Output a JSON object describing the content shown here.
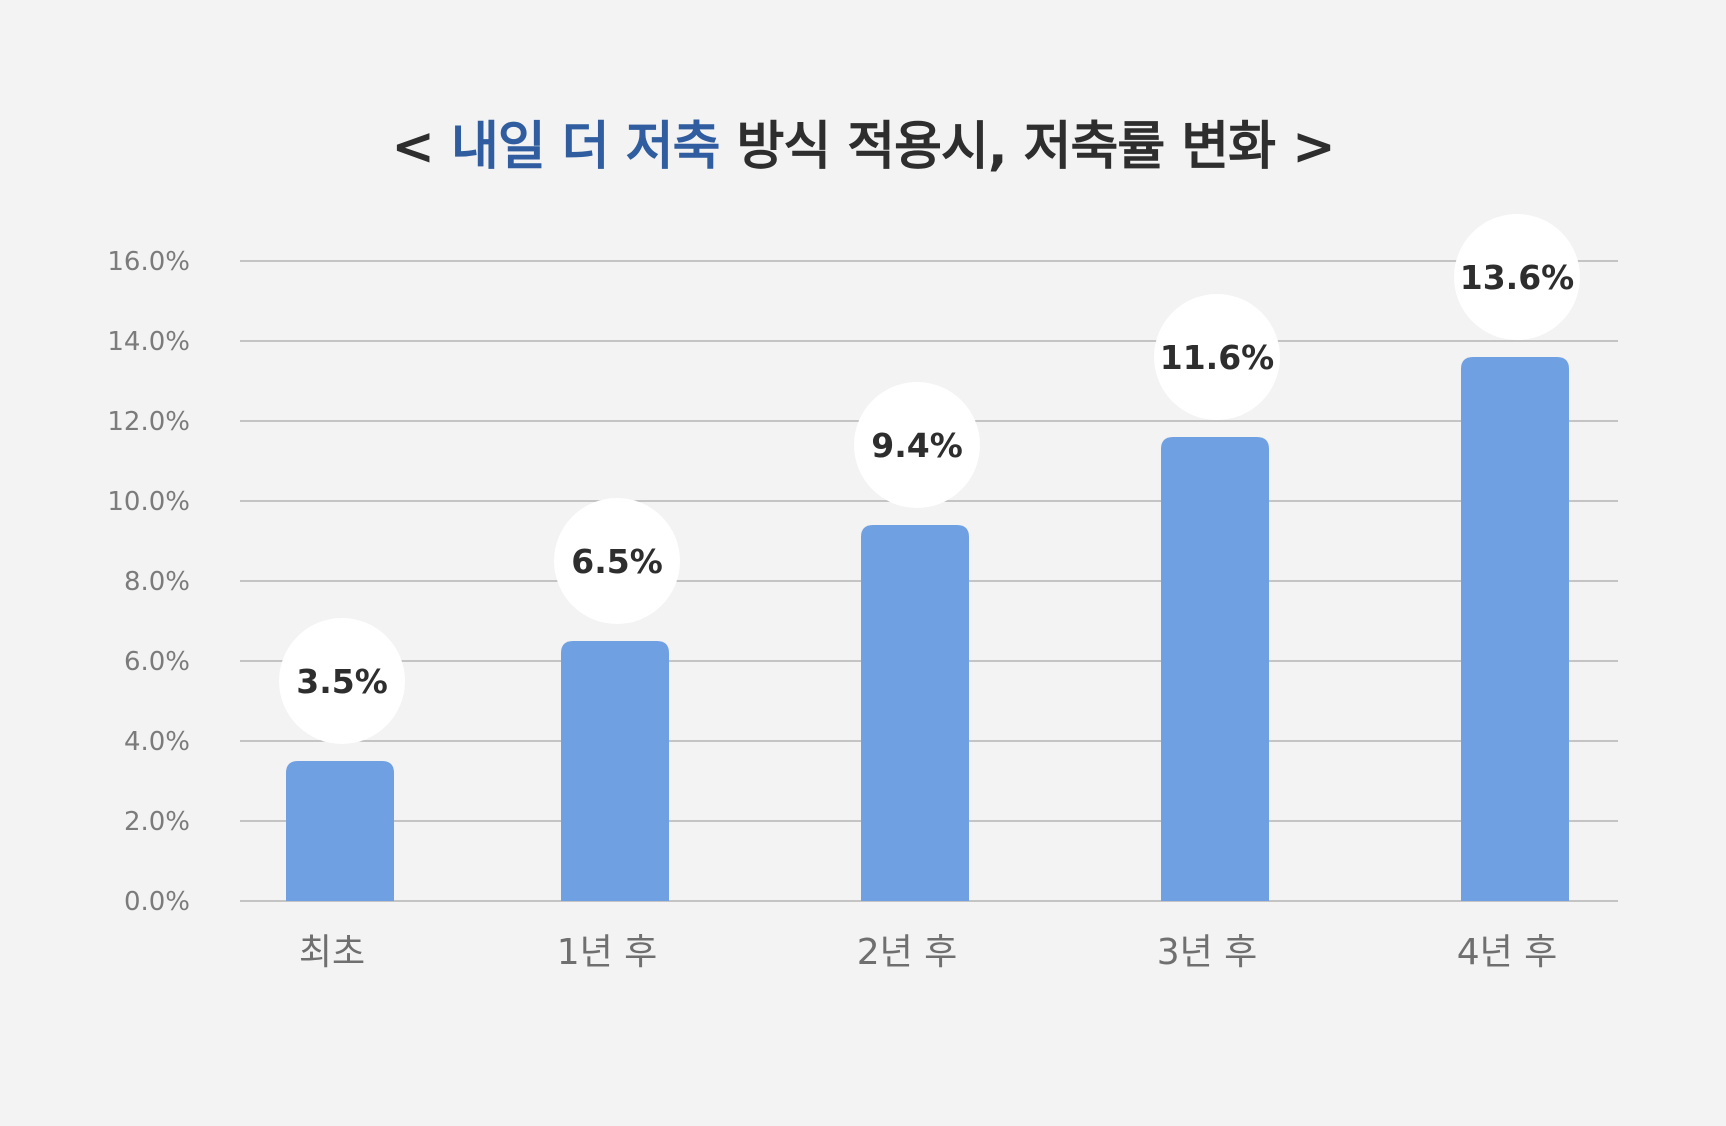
{
  "chart_data": {
    "type": "bar",
    "title_prefix": "< ",
    "title_highlight": "내일 더 저축",
    "title_rest": " 방식 적용시, 저축률 변화 >",
    "categories": [
      "최초",
      "1년 후",
      "2년 후",
      "3년 후",
      "4년 후"
    ],
    "values": [
      3.5,
      6.5,
      9.4,
      11.6,
      13.6
    ],
    "value_labels": [
      "3.5%",
      "6.5%",
      "9.4%",
      "11.6%",
      "13.6%"
    ],
    "y_ticks": [
      "0.0%",
      "2.0%",
      "4.0%",
      "6.0%",
      "8.0%",
      "10.0%",
      "12.0%",
      "14.0%",
      "16.0%"
    ],
    "ylim": [
      0,
      16
    ],
    "xlabel": "",
    "ylabel": "",
    "grid": true,
    "legend": "none"
  },
  "colors": {
    "bar": "#6fa0e2",
    "title_highlight": "#2f5d9f",
    "gridline": "#b5b5b5",
    "bubble": "#ffffff",
    "background": "#f3f3f3"
  }
}
